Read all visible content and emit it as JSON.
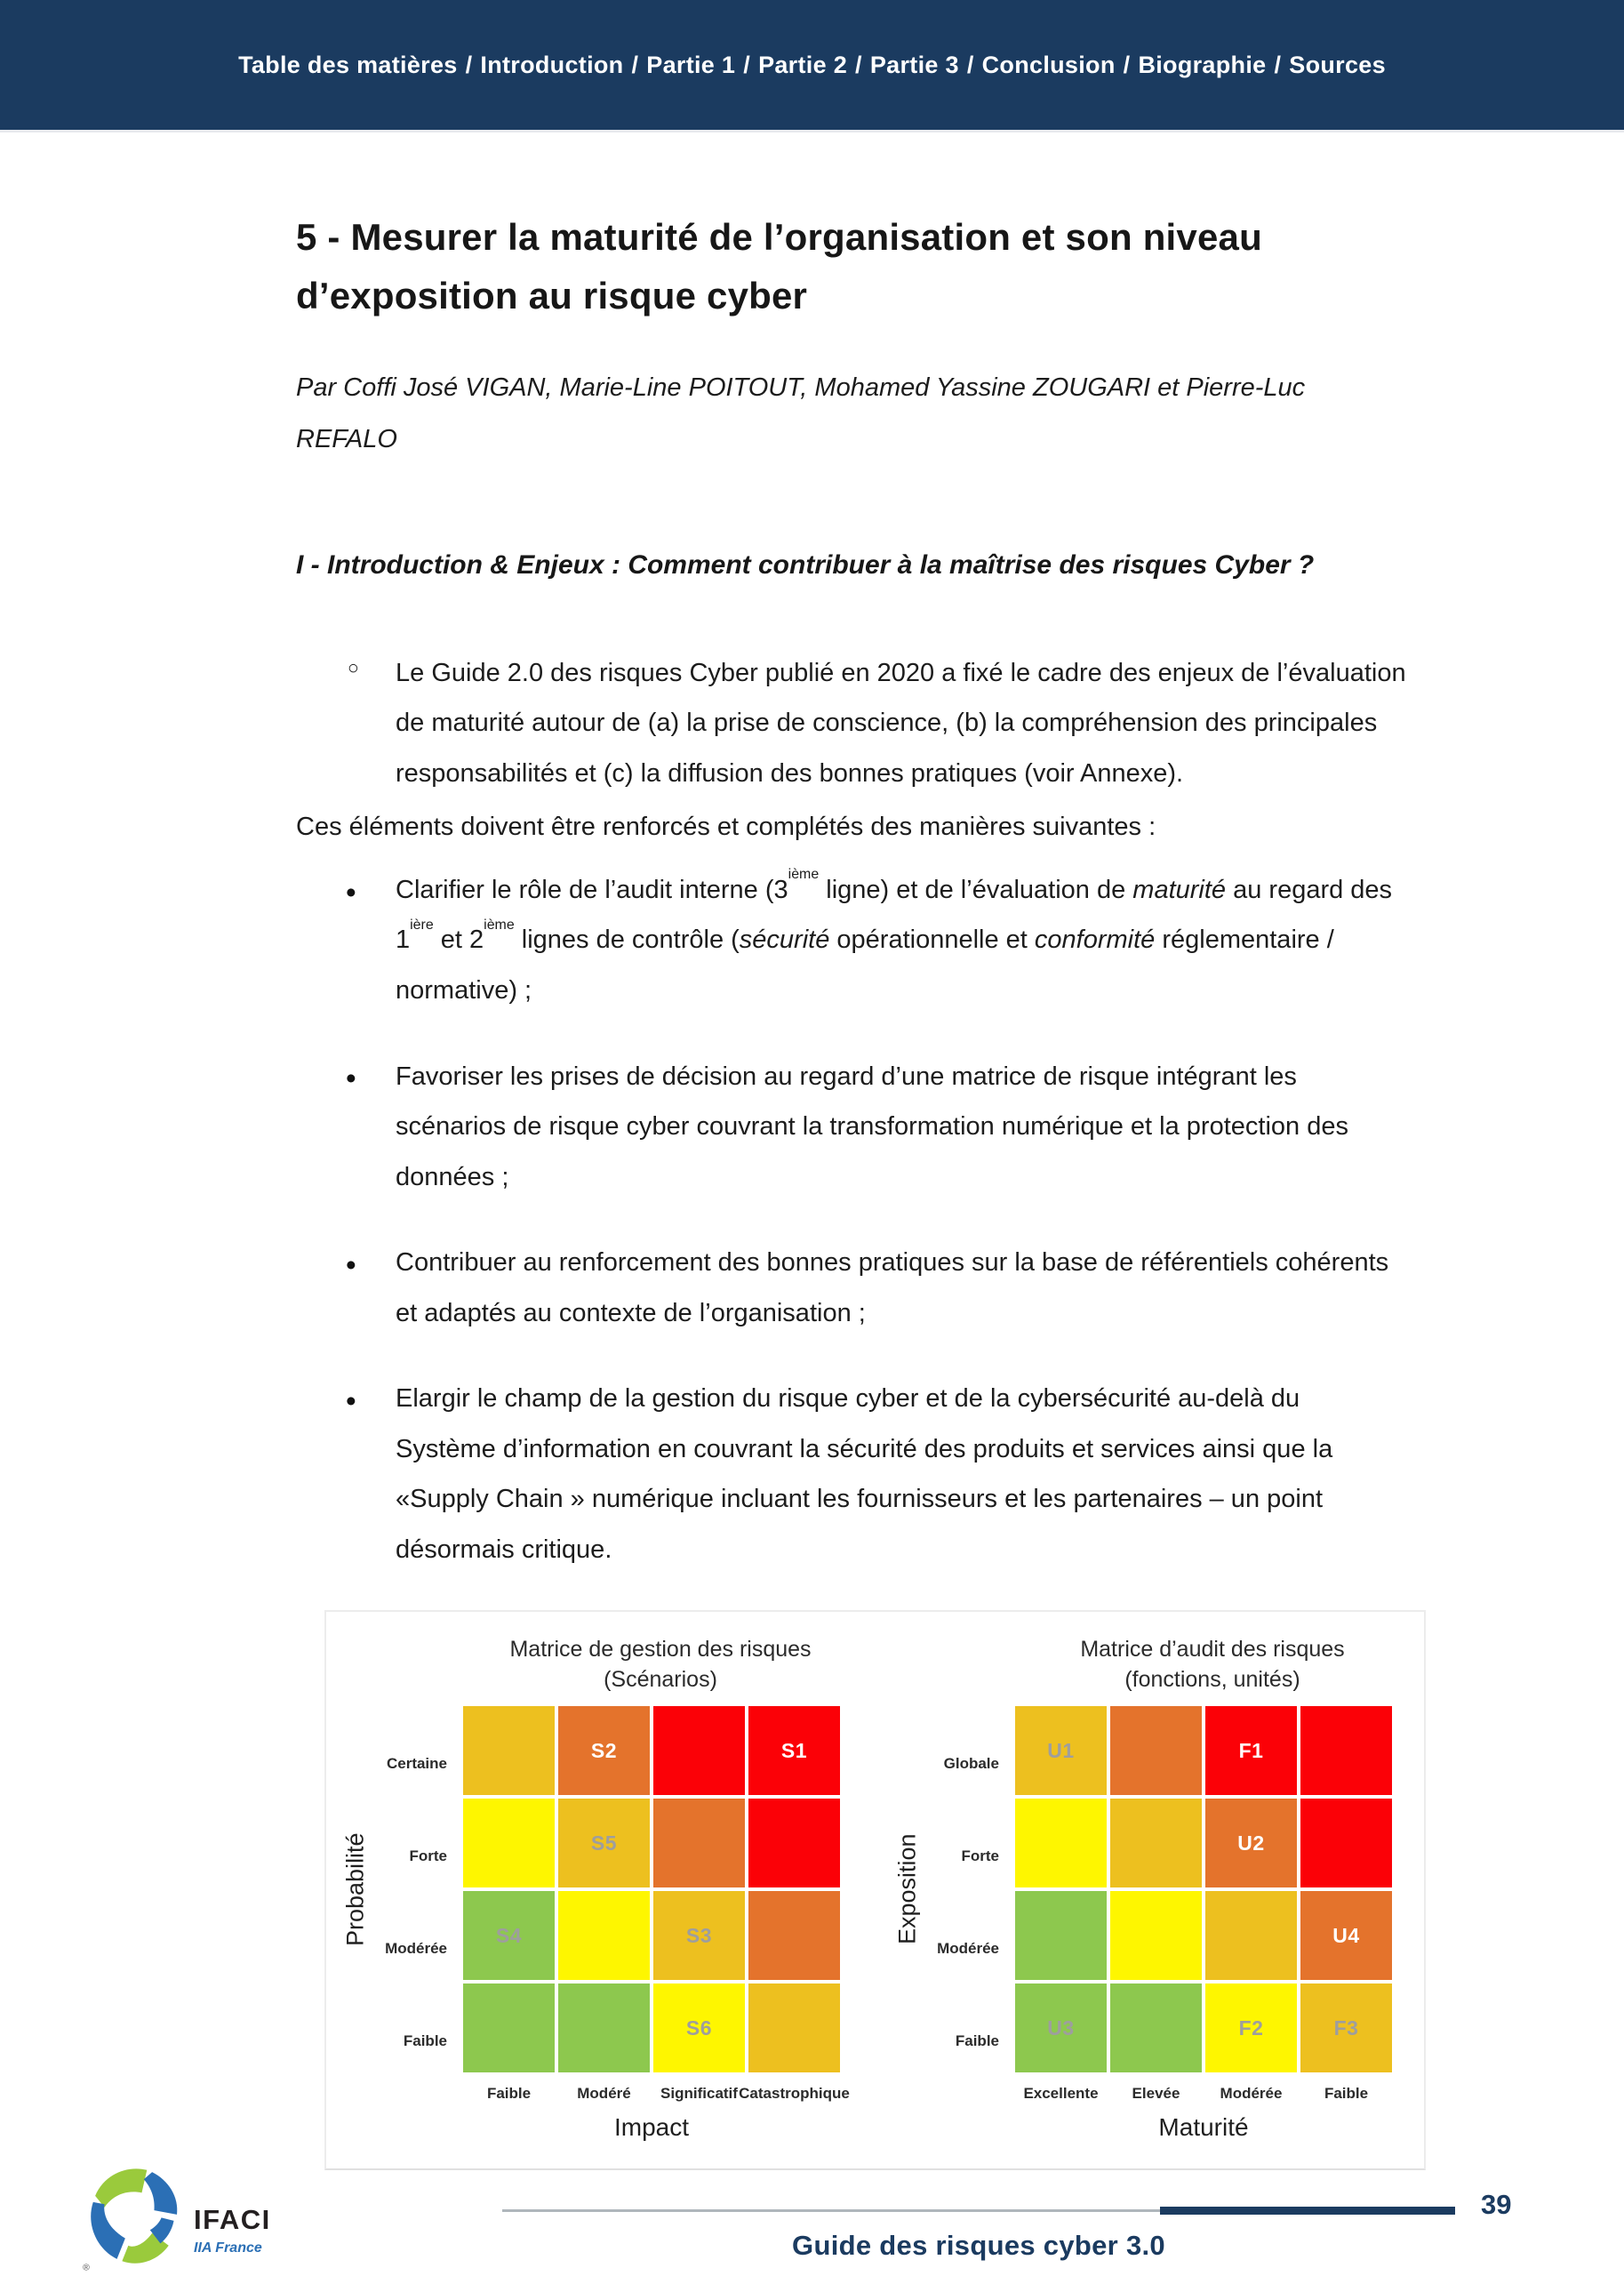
{
  "nav": {
    "items": [
      "Table des matières",
      "Introduction",
      "Partie 1",
      "Partie 2",
      "Partie 3",
      "Conclusion",
      "Biographie",
      "Sources"
    ],
    "separator": "/"
  },
  "article": {
    "title": "5 - Mesurer la maturité de l’organisation et son niveau d’exposition au risque cyber",
    "byline_lines": [
      "Par Coffi José VIGAN, Marie-Line POITOUT, Mohamed Yassine ZOUGARI et Pierre-Luc",
      "REFALO"
    ],
    "section_heading": "I - Introduction & Enjeux : Comment contribuer à la maîtrise des risques Cyber ?",
    "intro_bullet": "Le Guide 2.0 des risques Cyber publié en 2020 a fixé le cadre des enjeux de l’évaluation de maturité autour de (a) la prise de conscience, (b) la compréhension des principales responsabilités et (c) la diffusion des bonnes pratiques (voir Annexe).",
    "lead_paragraph": "Ces éléments doivent être renforcés et complétés des manières suivantes :",
    "bullets": [
      {
        "runs": [
          {
            "t": "Clarifier le rôle de l’audit interne (3"
          },
          {
            "t": "ième",
            "s": "sup"
          },
          {
            "t": " ligne) et de l’évaluation de "
          },
          {
            "t": "maturité",
            "s": "i"
          },
          {
            "t": " au regard des 1"
          },
          {
            "t": "ière",
            "s": "sup"
          },
          {
            "t": " et 2"
          },
          {
            "t": "ième",
            "s": "sup"
          },
          {
            "t": " lignes de contrôle ("
          },
          {
            "t": "sécurité",
            "s": "i"
          },
          {
            "t": " opérationnelle et "
          },
          {
            "t": "conformité",
            "s": "i"
          },
          {
            "t": " réglementaire / normative) ;"
          }
        ]
      },
      {
        "runs": [
          {
            "t": "Favoriser les prises de décision au regard d’une matrice de risque intégrant les scénarios de risque cyber couvrant la transformation numérique et la protection des données ;"
          }
        ]
      },
      {
        "runs": [
          {
            "t": "Contribuer au renforcement des bonnes pratiques sur la base de référentiels cohérents et adaptés au contexte de l’organisation ;"
          }
        ]
      },
      {
        "runs": [
          {
            "t": "Elargir le champ de la gestion du risque cyber et de la cybersécurité au-delà du Système d’information en couvrant la sécurité des produits et services ainsi que la «Supply Chain » numérique incluant les fournisseurs et les partenaires – un point désormais critique."
          }
        ]
      }
    ]
  },
  "chart_palette": {
    "gold": "#EDC01F",
    "yellow": "#FEF600",
    "orange": "#E4732C",
    "red": "#FB0107",
    "green": "#8DC84E",
    "label_white": "#FFFFFF",
    "label_gray": "#9E9E9E"
  },
  "chart_data": [
    {
      "id": "management",
      "type": "heatmap",
      "title": "Matrice de gestion des risques",
      "subtitle": "(Scénarios)",
      "xlabel": "Impact",
      "ylabel": "Probabilité",
      "x_categories": [
        "Faible",
        "Modéré",
        "Significatif",
        "Catastrophique"
      ],
      "y_categories": [
        "Certaine",
        "Forte",
        "Modérée",
        "Faible"
      ],
      "rows": [
        [
          {
            "c": "gold"
          },
          {
            "c": "orange",
            "l": "S2",
            "lc": "label_white"
          },
          {
            "c": "red"
          },
          {
            "c": "red",
            "l": "S1",
            "lc": "label_white"
          }
        ],
        [
          {
            "c": "yellow"
          },
          {
            "c": "gold",
            "l": "S5",
            "lc": "label_gray"
          },
          {
            "c": "orange"
          },
          {
            "c": "red"
          }
        ],
        [
          {
            "c": "green",
            "l": "S4",
            "lc": "label_gray"
          },
          {
            "c": "yellow"
          },
          {
            "c": "gold",
            "l": "S3",
            "lc": "label_gray"
          },
          {
            "c": "orange"
          }
        ],
        [
          {
            "c": "green"
          },
          {
            "c": "green"
          },
          {
            "c": "yellow",
            "l": "S6",
            "lc": "label_gray"
          },
          {
            "c": "gold"
          }
        ]
      ]
    },
    {
      "id": "audit",
      "type": "heatmap",
      "title": "Matrice d’audit des risques",
      "subtitle": "(fonctions, unités)",
      "xlabel": "Maturité",
      "ylabel": "Exposition",
      "x_categories": [
        "Excellente",
        "Elevée",
        "Modérée",
        "Faible"
      ],
      "y_categories": [
        "Globale",
        "Forte",
        "Modérée",
        "Faible"
      ],
      "rows": [
        [
          {
            "c": "gold",
            "l": "U1",
            "lc": "label_gray"
          },
          {
            "c": "orange"
          },
          {
            "c": "red",
            "l": "F1",
            "lc": "label_white"
          },
          {
            "c": "red"
          }
        ],
        [
          {
            "c": "yellow"
          },
          {
            "c": "gold"
          },
          {
            "c": "orange",
            "l": "U2",
            "lc": "label_white"
          },
          {
            "c": "red"
          }
        ],
        [
          {
            "c": "green"
          },
          {
            "c": "yellow"
          },
          {
            "c": "gold"
          },
          {
            "c": "orange",
            "l": "U4",
            "lc": "label_white"
          }
        ],
        [
          {
            "c": "green",
            "l": "U3",
            "lc": "label_gray"
          },
          {
            "c": "green"
          },
          {
            "c": "yellow",
            "l": "F2",
            "lc": "label_gray"
          },
          {
            "c": "gold",
            "l": "F3",
            "lc": "label_gray"
          }
        ]
      ]
    }
  ],
  "footer": {
    "brand": "IFACI",
    "brand_sub": "IIA France",
    "registered_mark": "®",
    "title": "Guide des risques cyber 3.0",
    "page_number": "39"
  },
  "colors": {
    "navbar": "#1B3B60",
    "accent": "#1B3B60",
    "rule_gray": "#AFB6BC",
    "logo_green": "#9ACA3C",
    "logo_blue": "#2B6FB5"
  }
}
